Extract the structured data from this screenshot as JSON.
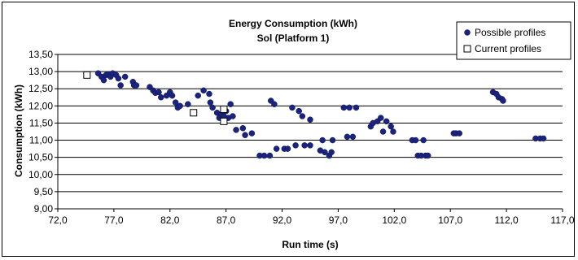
{
  "chart_data": {
    "type": "scatter",
    "title": "Energy Consumption (kWh)",
    "subtitle": "Sol (Platform 1)",
    "xlabel": "Run time (s)",
    "ylabel": "Consumption (kWh)",
    "xlim": [
      72.0,
      117.0
    ],
    "ylim": [
      9.0,
      13.5
    ],
    "x_ticks": [
      "72,0",
      "77,0",
      "82,0",
      "87,0",
      "92,0",
      "97,0",
      "102,0",
      "107,0",
      "112,0",
      "117,0"
    ],
    "y_ticks": [
      "9,00",
      "9,50",
      "10,00",
      "10,50",
      "11,00",
      "11,50",
      "12,00",
      "12,50",
      "13,00",
      "13,50"
    ],
    "grid": "horizontal",
    "legend_position": "top-right",
    "colors": {
      "possible": "#1a237e",
      "current_fill": "#ffffff",
      "current_stroke": "#000000"
    },
    "series": [
      {
        "name": "Possible profiles",
        "marker": "circle",
        "points": [
          [
            75.6,
            12.95
          ],
          [
            75.9,
            12.85
          ],
          [
            76.1,
            12.75
          ],
          [
            76.3,
            12.9
          ],
          [
            76.5,
            12.92
          ],
          [
            76.7,
            12.85
          ],
          [
            76.9,
            12.95
          ],
          [
            77.2,
            12.9
          ],
          [
            77.4,
            12.8
          ],
          [
            77.6,
            12.6
          ],
          [
            78.0,
            12.85
          ],
          [
            78.7,
            12.7
          ],
          [
            78.8,
            12.6
          ],
          [
            79.0,
            12.6
          ],
          [
            80.2,
            12.55
          ],
          [
            80.5,
            12.45
          ],
          [
            80.7,
            12.38
          ],
          [
            81.0,
            12.4
          ],
          [
            81.2,
            12.25
          ],
          [
            81.7,
            12.3
          ],
          [
            82.0,
            12.4
          ],
          [
            82.2,
            12.3
          ],
          [
            82.5,
            12.1
          ],
          [
            82.7,
            11.95
          ],
          [
            82.9,
            12.0
          ],
          [
            83.6,
            12.05
          ],
          [
            84.5,
            12.3
          ],
          [
            85.0,
            12.45
          ],
          [
            85.5,
            12.35
          ],
          [
            85.6,
            12.1
          ],
          [
            85.8,
            11.95
          ],
          [
            86.2,
            11.8
          ],
          [
            86.4,
            11.65
          ],
          [
            86.6,
            11.75
          ],
          [
            86.8,
            11.7
          ],
          [
            87.0,
            11.85
          ],
          [
            87.2,
            11.65
          ],
          [
            87.4,
            12.05
          ],
          [
            87.6,
            11.7
          ],
          [
            87.9,
            11.3
          ],
          [
            88.5,
            11.35
          ],
          [
            88.7,
            11.15
          ],
          [
            89.3,
            11.2
          ],
          [
            90.0,
            10.55
          ],
          [
            90.4,
            10.55
          ],
          [
            90.9,
            10.55
          ],
          [
            91.0,
            12.15
          ],
          [
            91.3,
            12.05
          ],
          [
            91.5,
            10.75
          ],
          [
            92.2,
            10.75
          ],
          [
            92.5,
            10.75
          ],
          [
            92.9,
            11.95
          ],
          [
            93.2,
            10.85
          ],
          [
            93.5,
            11.85
          ],
          [
            93.8,
            11.7
          ],
          [
            94.0,
            10.85
          ],
          [
            94.5,
            11.6
          ],
          [
            94.5,
            10.85
          ],
          [
            95.4,
            10.7
          ],
          [
            95.6,
            11.0
          ],
          [
            95.8,
            10.65
          ],
          [
            96.2,
            10.55
          ],
          [
            96.4,
            10.65
          ],
          [
            96.5,
            11.0
          ],
          [
            97.5,
            11.95
          ],
          [
            97.8,
            11.1
          ],
          [
            98.0,
            11.95
          ],
          [
            98.3,
            11.1
          ],
          [
            98.6,
            11.95
          ],
          [
            99.9,
            11.4
          ],
          [
            100.1,
            11.5
          ],
          [
            100.5,
            11.55
          ],
          [
            100.8,
            11.65
          ],
          [
            101.0,
            11.25
          ],
          [
            101.3,
            11.55
          ],
          [
            101.7,
            11.4
          ],
          [
            101.9,
            11.25
          ],
          [
            103.6,
            11.0
          ],
          [
            103.9,
            11.0
          ],
          [
            104.1,
            10.55
          ],
          [
            104.4,
            10.55
          ],
          [
            104.6,
            11.0
          ],
          [
            104.8,
            10.55
          ],
          [
            105.0,
            10.55
          ],
          [
            107.3,
            11.2
          ],
          [
            107.5,
            11.2
          ],
          [
            107.8,
            11.2
          ],
          [
            110.8,
            12.4
          ],
          [
            111.1,
            12.35
          ],
          [
            111.3,
            12.25
          ],
          [
            111.6,
            12.2
          ],
          [
            111.7,
            12.15
          ],
          [
            114.6,
            11.05
          ],
          [
            115.0,
            11.05
          ],
          [
            115.3,
            11.05
          ]
        ]
      },
      {
        "name": "Current profiles",
        "marker": "square",
        "points": [
          [
            74.6,
            12.9
          ],
          [
            84.1,
            11.8
          ],
          [
            86.8,
            11.9
          ],
          [
            86.8,
            11.55
          ]
        ]
      }
    ]
  }
}
